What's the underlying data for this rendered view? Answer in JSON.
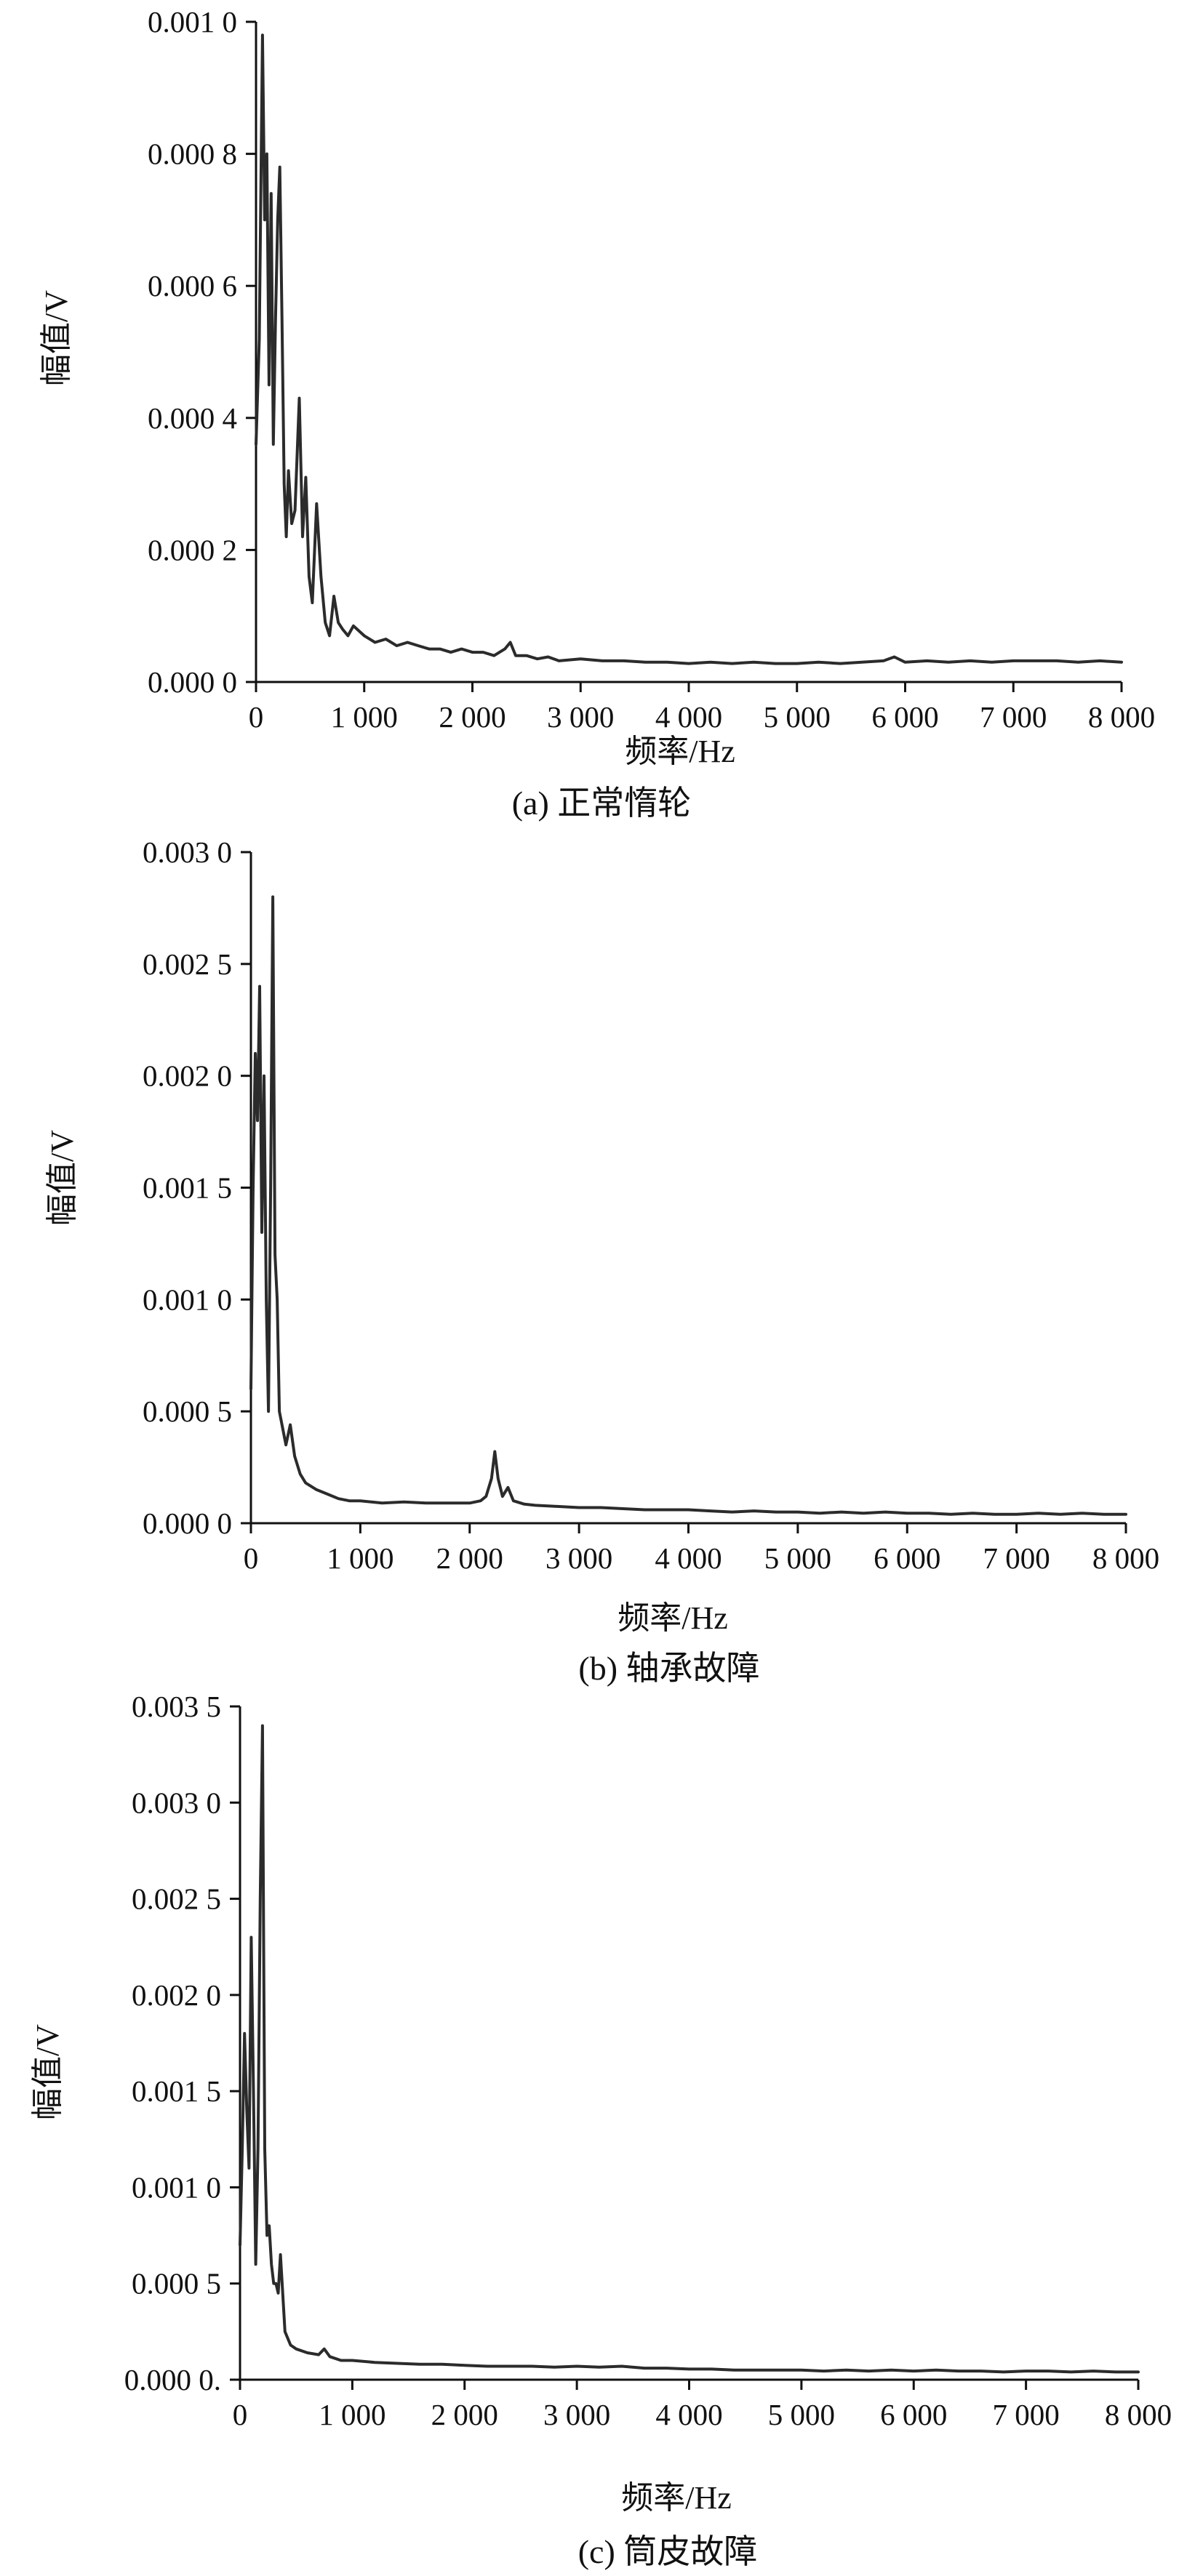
{
  "figures": [
    {
      "caption": "(a) 正常惰轮",
      "ylabel": "幅值/V",
      "xlabel": "频率/Hz"
    },
    {
      "caption": "(b) 轴承故障",
      "ylabel": "幅值/V",
      "xlabel": "频率/Hz"
    },
    {
      "caption": "(c) 筒皮故障",
      "ylabel": "幅值/V",
      "xlabel": "频率/Hz"
    }
  ],
  "chart_data": [
    {
      "type": "line",
      "title": "",
      "caption": "(a) 正常惰轮",
      "xlabel": "频率/Hz",
      "ylabel": "幅值/V",
      "xlim": [
        0,
        8000
      ],
      "ylim": [
        0,
        0.001
      ],
      "xticks": [
        0,
        1000,
        2000,
        3000,
        4000,
        5000,
        6000,
        7000,
        8000
      ],
      "xtick_labels": [
        "0",
        "1 000",
        "2 000",
        "3 000",
        "4 000",
        "5 000",
        "6 000",
        "7 000",
        "8 000"
      ],
      "yticks": [
        0,
        0.0002,
        0.0004,
        0.0006,
        0.0008,
        0.001
      ],
      "ytick_labels": [
        "0.000 0",
        "0.000 2",
        "0.000 4",
        "0.000 6",
        "0.000 8",
        "0.001 0"
      ],
      "grid": false,
      "line_color": "#2b2b2b",
      "x": [
        0,
        30,
        60,
        80,
        100,
        120,
        140,
        160,
        180,
        200,
        220,
        240,
        260,
        280,
        300,
        330,
        360,
        400,
        430,
        460,
        490,
        520,
        560,
        600,
        640,
        680,
        720,
        760,
        800,
        850,
        900,
        1000,
        1100,
        1200,
        1300,
        1400,
        1500,
        1600,
        1700,
        1800,
        1900,
        2000,
        2100,
        2200,
        2300,
        2350,
        2400,
        2500,
        2600,
        2700,
        2800,
        3000,
        3200,
        3400,
        3600,
        3800,
        4000,
        4200,
        4400,
        4600,
        4800,
        5000,
        5200,
        5400,
        5600,
        5800,
        5900,
        6000,
        6200,
        6400,
        6600,
        6800,
        7000,
        7200,
        7400,
        7600,
        7800,
        8000
      ],
      "y": [
        0.00036,
        0.00052,
        0.00098,
        0.0007,
        0.0008,
        0.00045,
        0.00074,
        0.00036,
        0.00055,
        0.0007,
        0.00078,
        0.00055,
        0.0003,
        0.00022,
        0.00032,
        0.00024,
        0.00026,
        0.00043,
        0.00022,
        0.00031,
        0.00016,
        0.00012,
        0.00027,
        0.00016,
        9e-05,
        7e-05,
        0.00013,
        9e-05,
        8e-05,
        7e-05,
        8.5e-05,
        7e-05,
        6e-05,
        6.5e-05,
        5.5e-05,
        6e-05,
        5.5e-05,
        5e-05,
        5e-05,
        4.5e-05,
        5e-05,
        4.5e-05,
        4.5e-05,
        4e-05,
        5e-05,
        6e-05,
        4e-05,
        4e-05,
        3.5e-05,
        3.8e-05,
        3.2e-05,
        3.5e-05,
        3.2e-05,
        3.2e-05,
        3e-05,
        3e-05,
        2.8e-05,
        3e-05,
        2.8e-05,
        3e-05,
        2.8e-05,
        2.8e-05,
        3e-05,
        2.8e-05,
        3e-05,
        3.2e-05,
        3.8e-05,
        3e-05,
        3.2e-05,
        3e-05,
        3.2e-05,
        3e-05,
        3.2e-05,
        3.2e-05,
        3.2e-05,
        3e-05,
        3.2e-05,
        3e-05
      ]
    },
    {
      "type": "line",
      "title": "",
      "caption": "(b) 轴承故障",
      "xlabel": "频率/Hz",
      "ylabel": "幅值/V",
      "xlim": [
        0,
        8000
      ],
      "ylim": [
        0,
        0.003
      ],
      "xticks": [
        0,
        1000,
        2000,
        3000,
        4000,
        5000,
        6000,
        7000,
        8000
      ],
      "xtick_labels": [
        "0",
        "1 000",
        "2 000",
        "3 000",
        "4 000",
        "5 000",
        "6 000",
        "7 000",
        "8 000"
      ],
      "yticks": [
        0,
        0.0005,
        0.001,
        0.0015,
        0.002,
        0.0025,
        0.003
      ],
      "ytick_labels": [
        "0.000 0",
        "0.000 5",
        "0.001 0",
        "0.001 5",
        "0.002 0",
        "0.002 5",
        "0.003 0"
      ],
      "grid": false,
      "line_color": "#2b2b2b",
      "x": [
        0,
        20,
        40,
        60,
        80,
        100,
        120,
        140,
        160,
        180,
        200,
        220,
        240,
        260,
        280,
        320,
        360,
        400,
        450,
        500,
        600,
        700,
        800,
        900,
        1000,
        1200,
        1400,
        1600,
        1800,
        2000,
        2100,
        2150,
        2200,
        2230,
        2260,
        2300,
        2350,
        2400,
        2500,
        2600,
        2800,
        3000,
        3200,
        3400,
        3600,
        3800,
        4000,
        4200,
        4400,
        4600,
        4800,
        5000,
        5200,
        5400,
        5600,
        5800,
        6000,
        6200,
        6400,
        6600,
        6800,
        7000,
        7200,
        7400,
        7600,
        7800,
        8000
      ],
      "y": [
        0.0006,
        0.0015,
        0.0021,
        0.0018,
        0.0024,
        0.0013,
        0.002,
        0.001,
        0.0005,
        0.0015,
        0.0028,
        0.0012,
        0.001,
        0.0005,
        0.00045,
        0.00035,
        0.00044,
        0.0003,
        0.00022,
        0.00018,
        0.00015,
        0.00013,
        0.00011,
        0.0001,
        0.0001,
        9e-05,
        9.5e-05,
        9e-05,
        9e-05,
        9e-05,
        0.0001,
        0.00012,
        0.0002,
        0.00032,
        0.0002,
        0.00012,
        0.00016,
        0.0001,
        8.5e-05,
        8e-05,
        7.5e-05,
        7e-05,
        7e-05,
        6.5e-05,
        6e-05,
        6e-05,
        6e-05,
        5.5e-05,
        5e-05,
        5.5e-05,
        5e-05,
        5e-05,
        4.5e-05,
        5e-05,
        4.5e-05,
        5e-05,
        4.5e-05,
        4.5e-05,
        4e-05,
        4.5e-05,
        4e-05,
        4e-05,
        4.5e-05,
        4e-05,
        4.5e-05,
        4e-05,
        4e-05
      ]
    },
    {
      "type": "line",
      "title": "",
      "caption": "(c) 筒皮故障",
      "xlabel": "频率/Hz",
      "ylabel": "幅值/V",
      "xlim": [
        0,
        8000
      ],
      "ylim": [
        0,
        0.0035
      ],
      "xticks": [
        0,
        1000,
        2000,
        3000,
        4000,
        5000,
        6000,
        7000,
        8000
      ],
      "xtick_labels": [
        "0",
        "1 000",
        "2 000",
        "3 000",
        "4 000",
        "5 000",
        "6 000",
        "7 000",
        "8 000"
      ],
      "yticks": [
        0,
        0.0005,
        0.001,
        0.0015,
        0.002,
        0.0025,
        0.003,
        0.0035
      ],
      "ytick_labels": [
        "0.000 0.",
        "0.000 5",
        "0.001 0",
        "0.001 5",
        "0.002 0",
        "0.002 5",
        "0.003 0",
        "0.003 5"
      ],
      "grid": false,
      "line_color": "#2b2b2b",
      "x": [
        0,
        20,
        40,
        60,
        80,
        100,
        120,
        140,
        160,
        180,
        200,
        220,
        240,
        260,
        280,
        300,
        320,
        340,
        360,
        400,
        450,
        500,
        600,
        700,
        750,
        800,
        900,
        1000,
        1200,
        1400,
        1600,
        1800,
        2000,
        2200,
        2400,
        2600,
        2800,
        3000,
        3200,
        3400,
        3600,
        3800,
        4000,
        4200,
        4400,
        4600,
        4800,
        5000,
        5200,
        5400,
        5600,
        5800,
        6000,
        6200,
        6400,
        6600,
        6800,
        7000,
        7200,
        7400,
        7600,
        7800,
        8000
      ],
      "y": [
        0.0007,
        0.0012,
        0.0018,
        0.0014,
        0.0011,
        0.0023,
        0.0015,
        0.0006,
        0.0012,
        0.0025,
        0.0034,
        0.0012,
        0.00075,
        0.0008,
        0.0006,
        0.0005,
        0.0005,
        0.00045,
        0.00065,
        0.00025,
        0.00018,
        0.00016,
        0.00014,
        0.00013,
        0.00016,
        0.00012,
        0.0001,
        0.0001,
        9e-05,
        8.5e-05,
        8e-05,
        8e-05,
        7.5e-05,
        7e-05,
        7e-05,
        7e-05,
        6.5e-05,
        7e-05,
        6.5e-05,
        7e-05,
        6e-05,
        6e-05,
        5.5e-05,
        5.5e-05,
        5e-05,
        5e-05,
        5e-05,
        5e-05,
        4.5e-05,
        5e-05,
        4.5e-05,
        5e-05,
        4.5e-05,
        5e-05,
        4.5e-05,
        4.5e-05,
        4e-05,
        4.5e-05,
        4.5e-05,
        4e-05,
        4.5e-05,
        4e-05,
        4e-05
      ]
    }
  ]
}
